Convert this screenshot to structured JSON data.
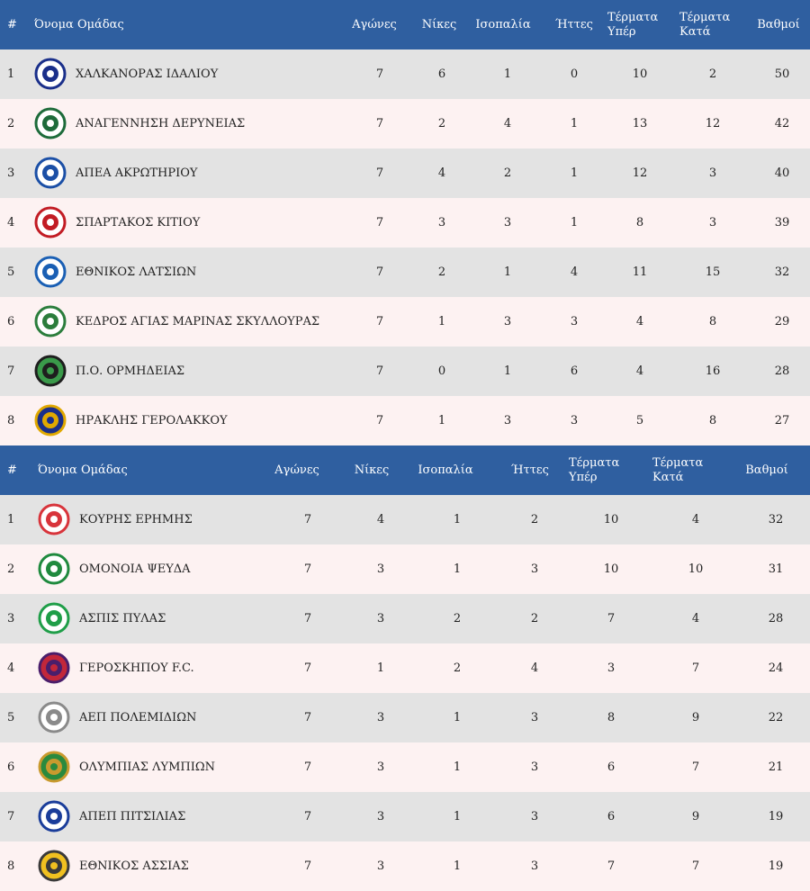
{
  "headers": {
    "rank": "#",
    "team": "Όνομα Ομάδας",
    "played": "Αγώνες",
    "wins": "Νίκες",
    "draws": "Ισοπαλία",
    "losses": "Ήττες",
    "goals_for": [
      "Τέρματα",
      "Υπέρ"
    ],
    "goals_against": [
      "Τέρματα",
      "Κατά"
    ],
    "points": "Βαθμοί"
  },
  "tables": [
    {
      "rows": [
        {
          "rank": "1",
          "logo": "club-crest-icon",
          "team": "ΧΑΛΚΑΝΟΡΑΣ ΙΔΑΛΙΟΥ",
          "played": "7",
          "wins": "6",
          "draws": "1",
          "losses": "0",
          "gf": "10",
          "ga": "2",
          "pts": "50"
        },
        {
          "rank": "2",
          "logo": "club-crest-icon",
          "team": "ΑΝΑΓΕΝΝΗΣΗ ΔΕΡΥΝΕΙΑΣ",
          "played": "7",
          "wins": "2",
          "draws": "4",
          "losses": "1",
          "gf": "13",
          "ga": "12",
          "pts": "42"
        },
        {
          "rank": "3",
          "logo": "club-crest-icon",
          "team": "ΑΠΕΑ ΑΚΡΩΤΗΡΙΟΥ",
          "played": "7",
          "wins": "4",
          "draws": "2",
          "losses": "1",
          "gf": "12",
          "ga": "3",
          "pts": "40"
        },
        {
          "rank": "4",
          "logo": "club-crest-icon",
          "team": "ΣΠΑΡΤΑΚΟΣ ΚΙΤΙΟΥ",
          "played": "7",
          "wins": "3",
          "draws": "3",
          "losses": "1",
          "gf": "8",
          "ga": "3",
          "pts": "39"
        },
        {
          "rank": "5",
          "logo": "club-crest-icon",
          "team": "ΕΘΝΙΚΟΣ ΛΑΤΣΙΩΝ",
          "played": "7",
          "wins": "2",
          "draws": "1",
          "losses": "4",
          "gf": "11",
          "ga": "15",
          "pts": "32"
        },
        {
          "rank": "6",
          "logo": "club-crest-icon",
          "team": "ΚΕΔΡΟΣ ΑΓΙΑΣ ΜΑΡΙΝΑΣ ΣΚΥΛΛΟΥΡΑΣ",
          "played": "7",
          "wins": "1",
          "draws": "3",
          "losses": "3",
          "gf": "4",
          "ga": "8",
          "pts": "29"
        },
        {
          "rank": "7",
          "logo": "club-crest-icon",
          "team": "Π.Ο. ΟΡΜΗΔΕΙΑΣ",
          "played": "7",
          "wins": "0",
          "draws": "1",
          "losses": "6",
          "gf": "4",
          "ga": "16",
          "pts": "28"
        },
        {
          "rank": "8",
          "logo": "club-crest-icon",
          "team": "ΗΡΑΚΛΗΣ ΓΕΡΟΛΑΚΚΟΥ",
          "played": "7",
          "wins": "1",
          "draws": "3",
          "losses": "3",
          "gf": "5",
          "ga": "8",
          "pts": "27"
        }
      ]
    },
    {
      "rows": [
        {
          "rank": "1",
          "logo": "club-crest-icon",
          "team": "ΚΟΥΡΗΣ ΕΡΗΜΗΣ",
          "played": "7",
          "wins": "4",
          "draws": "1",
          "losses": "2",
          "gf": "10",
          "ga": "4",
          "pts": "32"
        },
        {
          "rank": "2",
          "logo": "club-crest-icon",
          "team": "ΟΜΟΝΟΙΑ ΨΕΥΔΑ",
          "played": "7",
          "wins": "3",
          "draws": "1",
          "losses": "3",
          "gf": "10",
          "ga": "10",
          "pts": "31"
        },
        {
          "rank": "3",
          "logo": "club-crest-icon",
          "team": "ΑΣΠΙΣ ΠΥΛΑΣ",
          "played": "7",
          "wins": "3",
          "draws": "2",
          "losses": "2",
          "gf": "7",
          "ga": "4",
          "pts": "28"
        },
        {
          "rank": "4",
          "logo": "club-crest-icon",
          "team": "ΓΕΡΟΣΚΗΠΟΥ F.C.",
          "played": "7",
          "wins": "1",
          "draws": "2",
          "losses": "4",
          "gf": "3",
          "ga": "7",
          "pts": "24"
        },
        {
          "rank": "5",
          "logo": "club-crest-icon",
          "team": "ΑΕΠ ΠΟΛΕΜΙΔΙΩΝ",
          "played": "7",
          "wins": "3",
          "draws": "1",
          "losses": "3",
          "gf": "8",
          "ga": "9",
          "pts": "22"
        },
        {
          "rank": "6",
          "logo": "club-crest-icon",
          "team": "ΟΛΥΜΠΙΑΣ ΛΥΜΠΙΩΝ",
          "played": "7",
          "wins": "3",
          "draws": "1",
          "losses": "3",
          "gf": "6",
          "ga": "7",
          "pts": "21"
        },
        {
          "rank": "7",
          "logo": "club-crest-icon",
          "team": "ΑΠΕΠ ΠΙΤΣΙΛΙΑΣ",
          "played": "7",
          "wins": "3",
          "draws": "1",
          "losses": "3",
          "gf": "6",
          "ga": "9",
          "pts": "19"
        },
        {
          "rank": "8",
          "logo": "club-crest-icon",
          "team": "ΕΘΝΙΚΟΣ ΑΣΣΙΑΣ",
          "played": "7",
          "wins": "3",
          "draws": "1",
          "losses": "3",
          "gf": "7",
          "ga": "7",
          "pts": "19"
        }
      ]
    }
  ],
  "colors": {
    "header_bg": "#2f5fa0",
    "row_odd_bg": "#e3e3e3",
    "row_even_bg": "#fdf2f2"
  }
}
